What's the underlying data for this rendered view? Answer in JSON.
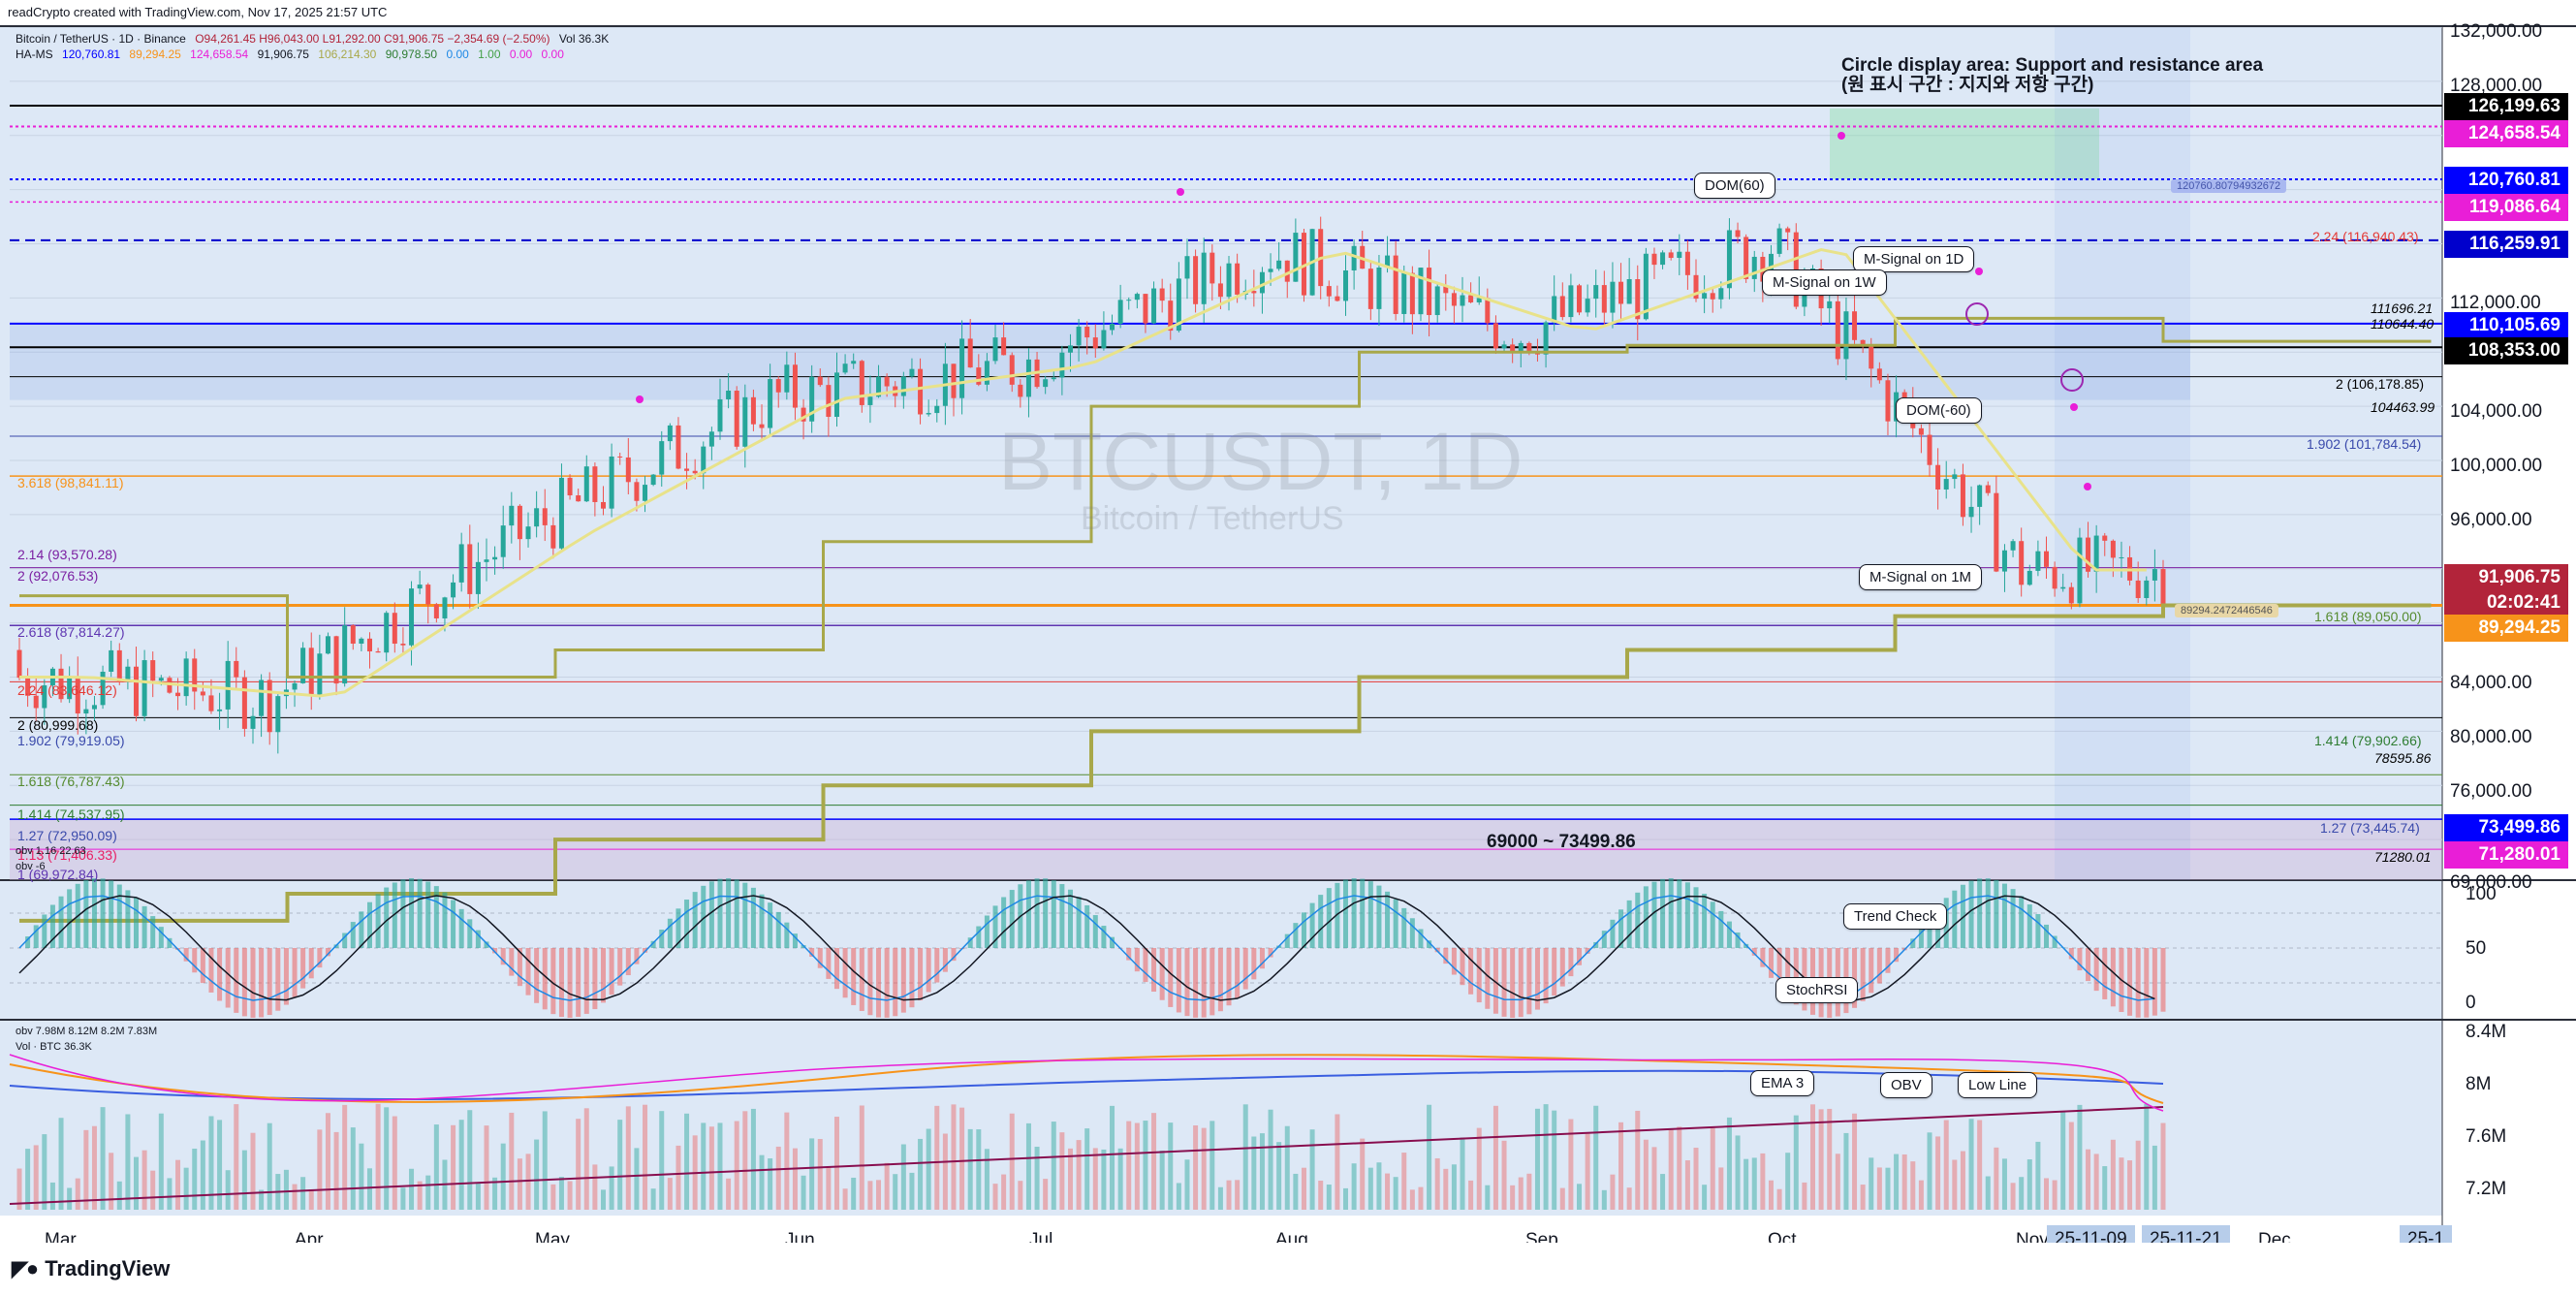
{
  "header": {
    "created_by": "readCrypto created with TradingView.com, Nov 17, 2025 21:57 UTC"
  },
  "legend": {
    "symbol_line": "Bitcoin / TetherUS · 1D · Binance",
    "ohlc": "O94,261.45 H96,043.00 L91,292.00 C91,906.75 −2,354.69 (−2.50%)",
    "vol": "Vol 36.3K",
    "hams_name": "HA-MS",
    "hams_values": [
      "120,760.81",
      "89,294.25",
      "124,658.54",
      "91,906.75",
      "106,214.30",
      "90,978.50",
      "0.00",
      "1.00",
      "0.00",
      "0.00"
    ],
    "obv_line": "obv  1.16  22.63",
    "obv_line2": "obv  -6",
    "vol_line1": "obv  7.98M  8.12M  8.2M  7.83M",
    "vol_line2": "Vol · BTC  36.3K"
  },
  "watermark": {
    "ticker": "BTCUSDT, 1D",
    "name": "Bitcoin / TetherUS"
  },
  "annotations": {
    "circle_title": "Circle display area: Support and resistance area",
    "circle_title_kr": "(원 표시 구간 : 지지와 저항 구간)",
    "zone_label": "69000 ~ 73499.86",
    "dom60": "DOM(60)",
    "dom_neg60": "DOM(-60)",
    "msignal_1d": "M-Signal on 1D",
    "msignal_1w": "M-Signal on 1W",
    "msignal_1m": "M-Signal on 1M",
    "trend_check": "Trend Check",
    "stochrsi": "StochRSI",
    "ema3": "EMA 3",
    "obv": "OBV",
    "low_line": "Low Line",
    "tag_120760": "120760.80794932672",
    "tag_89294": "89294.2472446546"
  },
  "fib_left": [
    "2.14 (93,570.28)",
    "2 (92,076.53)",
    "2.618 (87,814.27)",
    "2.24 (83,646.12)",
    "2 (80,999.68)",
    "1.902 (79,919.05)",
    "1.618 (76,787.43)",
    "1.414 (74,537.95)",
    "1.27 (72,950.09)",
    "1.13 (71,406.33)",
    "1 (69,972.84)",
    "3.618 (98,841.11)"
  ],
  "fib_right": [
    "2.24 (116,940.43)",
    "111696.21",
    "110644.40",
    "2 (106,178.85)",
    "104463.99",
    "1.902 (101,784.54)",
    "1.618 (89,050.00)",
    "1.414 (79,902.66)",
    "78595.86",
    "1.27 (73,445.74)",
    "71280.01"
  ],
  "price_axis": {
    "labels": [
      "132,000.00",
      "128,000.00",
      "112,000.00",
      "104,000.00",
      "100,000.00",
      "96,000.00",
      "84,000.00",
      "80,000.00",
      "76,000.00",
      "69,000.00"
    ],
    "tags": [
      {
        "text": "126,199.63",
        "color": "#000000"
      },
      {
        "text": "124,658.54",
        "color": "#e91ed7"
      },
      {
        "text": "120,760.81",
        "color": "#0000ff"
      },
      {
        "text": "119,086.64",
        "color": "#e91ed7"
      },
      {
        "text": "116,259.91",
        "color": "#0000cc"
      },
      {
        "text": "110,105.69",
        "color": "#0000ff"
      },
      {
        "text": "108,353.00",
        "color": "#000000"
      },
      {
        "text": "91,906.75",
        "color": "#b2243a"
      },
      {
        "text": "02:02:41",
        "color": "#b2243a"
      },
      {
        "text": "89,294.25",
        "color": "#f7931a"
      },
      {
        "text": "73,499.86",
        "color": "#0000ff"
      },
      {
        "text": "71,280.01",
        "color": "#e91ed7"
      }
    ]
  },
  "osc_axis": [
    "100",
    "50",
    "0"
  ],
  "vol_axis": [
    "8.4M",
    "8M",
    "7.6M",
    "7.2M"
  ],
  "time_axis": {
    "months": [
      "Mar",
      "Apr",
      "May",
      "Jun",
      "Jul",
      "Aug",
      "Sep",
      "Oct",
      "Nov",
      "Dec"
    ],
    "date_tags": [
      "25-11-09",
      "25-11-21",
      "25-1"
    ]
  },
  "footer": {
    "brand": "TradingView"
  },
  "colors": {
    "background": "#dde8f6",
    "up": "#26a69a",
    "down": "#ef5350",
    "m_signal_1m": "#a8a84a",
    "m_signal_1d": "#e8e28a",
    "hams_blue": "#3a5ee0",
    "magenta": "#e91ed7"
  },
  "chart_data": {
    "type": "candlestick",
    "title": "BTCUSDT, 1D",
    "x": [
      "Mar",
      "Apr",
      "May",
      "Jun",
      "Jul",
      "Aug",
      "Sep",
      "Oct",
      "Nov"
    ],
    "ylim": [
      69000,
      132000
    ],
    "series": [
      {
        "name": "close",
        "values": [
          84000,
          82500,
          94500,
          104500,
          107000,
          115500,
          109500,
          116000,
          91906.75
        ]
      },
      {
        "name": "M-Signal on 1M",
        "values": [
          66000,
          68000,
          72000,
          76000,
          80000,
          84000,
          86000,
          88500,
          89294.25
        ]
      },
      {
        "name": "M-Signal on 1W",
        "values": [
          90000,
          84000,
          86000,
          94000,
          104000,
          108000,
          108500,
          110500,
          108800
        ]
      }
    ],
    "last_close": 91906.75,
    "all_time_high": 126199.63,
    "grid": true,
    "oscillators": [
      "StochRSI",
      "OBV",
      "EMA 3",
      "Low Line",
      "Volume"
    ]
  }
}
